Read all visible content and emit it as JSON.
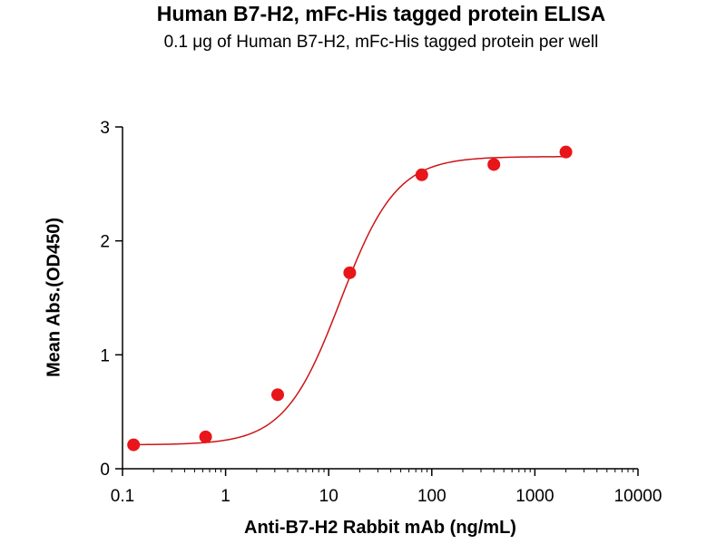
{
  "chart_data": {
    "type": "scatter",
    "title": "Human B7-H2, mFc-His tagged protein ELISA",
    "subtitle": "0.1 μg of Human B7-H2, mFc-His tagged protein per well",
    "xlabel": "Anti-B7-H2 Rabbit mAb (ng/mL)",
    "ylabel": "Mean Abs.(OD450)",
    "x_scale": "log",
    "xlim": [
      0.1,
      10000
    ],
    "ylim": [
      0,
      3
    ],
    "x_ticks": [
      "0.1",
      "1",
      "10",
      "100",
      "1000",
      "10000"
    ],
    "y_ticks": [
      "0",
      "1",
      "2",
      "3"
    ],
    "grid": false,
    "marker_color": "#e8151b",
    "curve_color": "#cc1417",
    "series": [
      {
        "x": [
          0.128,
          0.64,
          3.2,
          16,
          80,
          400,
          2000
        ],
        "y": [
          0.21,
          0.28,
          0.65,
          1.72,
          2.58,
          2.67,
          2.78
        ]
      }
    ],
    "fit": {
      "bottom": 0.21,
      "top": 2.74,
      "ec50": 13,
      "hill": 1.6,
      "x_range": [
        0.128,
        2000
      ]
    }
  }
}
